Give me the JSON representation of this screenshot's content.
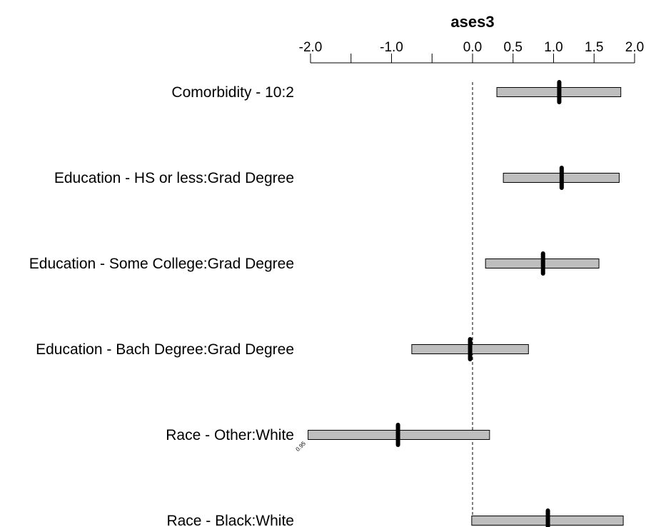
{
  "chart_data": {
    "type": "interval",
    "title": "ases3",
    "x_ticks": [
      {
        "value": -2.0,
        "label": "-2.0"
      },
      {
        "value": -1.5,
        "label": ""
      },
      {
        "value": -1.0,
        "label": "-1.0"
      },
      {
        "value": -0.5,
        "label": ""
      },
      {
        "value": 0.0,
        "label": "0.0"
      },
      {
        "value": 0.5,
        "label": "0.5"
      },
      {
        "value": 1.0,
        "label": "1.0"
      },
      {
        "value": 1.5,
        "label": "1.5"
      },
      {
        "value": 2.0,
        "label": "2.0"
      }
    ],
    "xlim": [
      -2.0,
      2.0
    ],
    "reference_line": 0.0,
    "confidence_label": "0.95",
    "rows": [
      {
        "label": "Comorbidity - 10:2",
        "estimate": 1.07,
        "lower": 0.3,
        "upper": 1.83
      },
      {
        "label": "Education - HS or less:Grad Degree",
        "estimate": 1.1,
        "lower": 0.38,
        "upper": 1.81
      },
      {
        "label": "Education - Some College:Grad Degree",
        "estimate": 0.87,
        "lower": 0.16,
        "upper": 1.56
      },
      {
        "label": "Education - Bach Degree:Grad Degree",
        "estimate": -0.03,
        "lower": -0.75,
        "upper": 0.69
      },
      {
        "label": "Race - Other:White",
        "estimate": -0.92,
        "lower": -2.03,
        "upper": 0.21
      },
      {
        "label": "Race - Black:White",
        "estimate": 0.93,
        "lower": -0.01,
        "upper": 1.86
      }
    ]
  }
}
